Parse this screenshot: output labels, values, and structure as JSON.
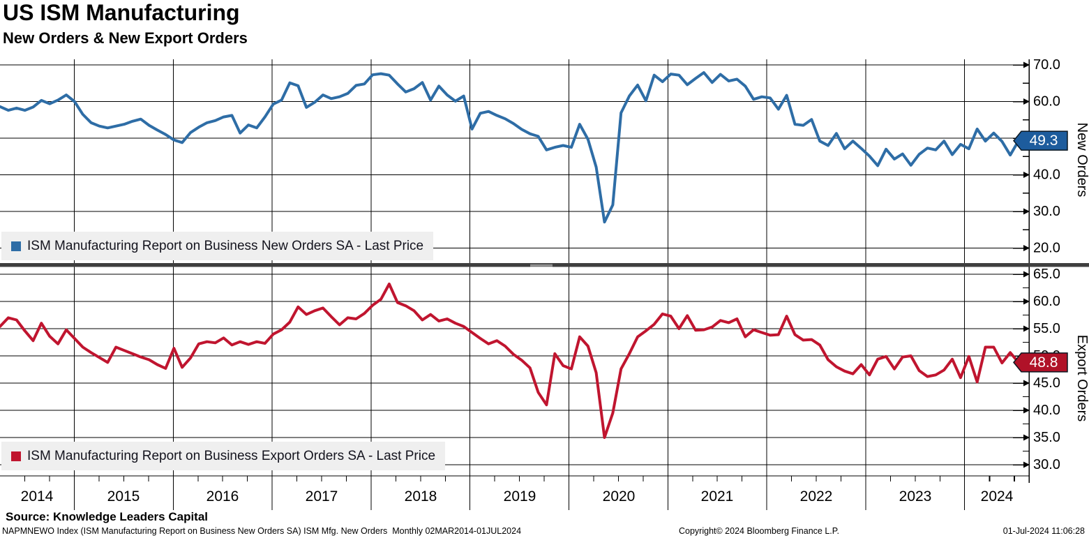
{
  "header": {
    "title": "US ISM Manufacturing",
    "subtitle": "New Orders & New Export Orders"
  },
  "panels": {
    "top": {
      "legend": "ISM Manufacturing Report on Business New Orders SA - Last Price",
      "axis_label": "New Orders",
      "last_value": "49.3",
      "y_ticks_major": [
        70,
        60,
        50,
        40,
        30,
        20
      ],
      "y_ticks_minor": [
        65,
        55,
        45,
        35,
        25
      ],
      "axis_range": [
        20,
        70
      ]
    },
    "bottom": {
      "legend": "ISM Manufacturing Report on Business Export Orders SA - Last Price",
      "axis_label": "Export Orders",
      "last_value": "48.8",
      "y_ticks_major": [
        65,
        60,
        55,
        50,
        45,
        40,
        35,
        30
      ],
      "y_ticks_minor": [
        62.5,
        57.5,
        52.5,
        47.5,
        42.5,
        37.5,
        32.5
      ],
      "axis_range": [
        30,
        65
      ]
    }
  },
  "x_axis": {
    "years": [
      "2014",
      "2015",
      "2016",
      "2017",
      "2018",
      "2019",
      "2020",
      "2021",
      "2022",
      "2023",
      "2024"
    ]
  },
  "footer": {
    "source": "Source: Knowledge Leaders Capital",
    "description": "NAPMNEWO Index (ISM Manufacturing Report on Business New Orders SA) ISM Mfg. New Orders  Monthly 02MAR2014-01JUL2024",
    "copyright": "Copyright© 2024 Bloomberg Finance L.P.",
    "timestamp": "01-Jul-2024 11:06:28"
  },
  "colors": {
    "new_orders_line": "#2e6da6",
    "new_orders_badge": "#1d5c9d",
    "export_orders_line": "#c0152f",
    "export_orders_badge": "#b01228",
    "legend_bg": "#efefef",
    "divider": "#3f3f3f",
    "grid": "#000000"
  },
  "chart_data": [
    {
      "type": "line",
      "name": "ISM Manufacturing Report on Business New Orders SA - Last Price",
      "frequency": "monthly",
      "x_start": "2014-03",
      "x_end": "2024-06",
      "ylim": [
        20,
        70
      ],
      "last_value": 49.3,
      "values": [
        58.6,
        57.6,
        58.2,
        57.6,
        58.5,
        60.3,
        59.4,
        60.4,
        61.8,
        60.0,
        56.5,
        54.2,
        53.3,
        52.8,
        53.3,
        53.8,
        54.6,
        55.2,
        53.5,
        52.2,
        51.0,
        49.5,
        48.8,
        51.5,
        53.0,
        54.2,
        54.8,
        55.8,
        56.2,
        51.4,
        53.6,
        52.8,
        55.8,
        59.3,
        60.4,
        65.1,
        64.3,
        58.4,
        59.8,
        61.8,
        60.8,
        61.3,
        62.2,
        64.4,
        64.8,
        67.3,
        67.6,
        67.2,
        64.8,
        62.6,
        63.5,
        65.2,
        60.4,
        64.2,
        61.8,
        60.1,
        61.5,
        52.5,
        56.8,
        57.3,
        56.2,
        55.3,
        54.0,
        52.4,
        51.2,
        50.5,
        46.8,
        47.5,
        48.0,
        47.5,
        53.8,
        49.7,
        42.1,
        27.1,
        31.8,
        56.9,
        61.5,
        64.5,
        60.2,
        67.2,
        65.4,
        67.5,
        67.2,
        64.6,
        66.3,
        67.9,
        65.2,
        67.4,
        65.6,
        66.1,
        64.2,
        60.6,
        61.3,
        61.0,
        57.9,
        61.7,
        53.8,
        53.5,
        55.1,
        49.2,
        48.0,
        51.3,
        47.1,
        49.2,
        47.2,
        45.1,
        42.5,
        47.0,
        44.3,
        45.7,
        42.6,
        45.6,
        47.3,
        46.8,
        49.2,
        45.5,
        48.3,
        47.1,
        52.5,
        49.2,
        51.4,
        49.1,
        45.4,
        49.3
      ]
    },
    {
      "type": "line",
      "name": "ISM Manufacturing Report on Business Export Orders SA - Last Price",
      "frequency": "monthly",
      "x_start": "2014-03",
      "x_end": "2024-06",
      "ylim": [
        30,
        65
      ],
      "last_value": 48.8,
      "values": [
        55.4,
        57.0,
        56.6,
        54.6,
        52.8,
        56.0,
        53.6,
        52.2,
        54.8,
        53.2,
        51.6,
        50.6,
        49.7,
        48.8,
        51.6,
        51.0,
        50.4,
        49.8,
        49.3,
        48.4,
        47.7,
        51.4,
        47.9,
        49.6,
        52.2,
        52.6,
        52.4,
        53.3,
        52.0,
        52.6,
        52.1,
        52.6,
        52.3,
        54.0,
        54.8,
        56.2,
        59.0,
        57.6,
        58.3,
        58.8,
        57.2,
        55.7,
        57.0,
        56.8,
        57.8,
        59.3,
        60.4,
        63.2,
        59.8,
        59.2,
        58.3,
        56.6,
        57.6,
        56.4,
        56.8,
        56.0,
        55.4,
        54.3,
        53.2,
        52.2,
        52.8,
        51.8,
        50.3,
        49.2,
        47.8,
        43.3,
        41.0,
        50.4,
        48.2,
        47.6,
        53.5,
        51.8,
        46.9,
        35.0,
        39.5,
        47.6,
        50.4,
        53.5,
        54.6,
        55.8,
        57.7,
        57.3,
        55.0,
        57.4,
        54.7,
        54.8,
        55.3,
        56.5,
        56.1,
        56.8,
        53.5,
        54.8,
        54.3,
        53.8,
        53.9,
        57.3,
        53.9,
        52.9,
        53.0,
        52.0,
        49.3,
        48.0,
        47.2,
        46.7,
        48.4,
        46.5,
        49.4,
        49.9,
        47.6,
        49.8,
        50.0,
        47.3,
        46.2,
        46.5,
        47.4,
        49.4,
        46.0,
        49.9,
        45.2,
        51.6,
        51.6,
        48.7,
        50.6,
        48.8
      ]
    }
  ]
}
